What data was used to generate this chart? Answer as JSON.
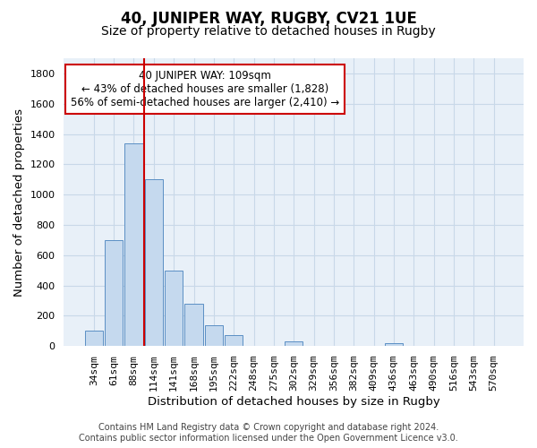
{
  "title": "40, JUNIPER WAY, RUGBY, CV21 1UE",
  "subtitle": "Size of property relative to detached houses in Rugby",
  "xlabel": "Distribution of detached houses by size in Rugby",
  "ylabel": "Number of detached properties",
  "categories": [
    "34sqm",
    "61sqm",
    "88sqm",
    "114sqm",
    "141sqm",
    "168sqm",
    "195sqm",
    "222sqm",
    "248sqm",
    "275sqm",
    "302sqm",
    "329sqm",
    "356sqm",
    "382sqm",
    "409sqm",
    "436sqm",
    "463sqm",
    "490sqm",
    "516sqm",
    "543sqm",
    "570sqm"
  ],
  "values": [
    100,
    700,
    1340,
    1100,
    500,
    280,
    140,
    75,
    0,
    0,
    30,
    0,
    0,
    0,
    0,
    20,
    0,
    0,
    0,
    0,
    0
  ],
  "bar_color": "#c5d9ee",
  "bar_edge_color": "#5b8fc4",
  "vline_color": "#cc0000",
  "annotation_lines": [
    "40 JUNIPER WAY: 109sqm",
    "← 43% of detached houses are smaller (1,828)",
    "56% of semi-detached houses are larger (2,410) →"
  ],
  "ylim": [
    0,
    1900
  ],
  "yticks": [
    0,
    200,
    400,
    600,
    800,
    1000,
    1200,
    1400,
    1600,
    1800
  ],
  "footer_line1": "Contains HM Land Registry data © Crown copyright and database right 2024.",
  "footer_line2": "Contains public sector information licensed under the Open Government Licence v3.0.",
  "background_color": "#ffffff",
  "grid_color": "#c8d8e8",
  "title_fontsize": 12,
  "subtitle_fontsize": 10,
  "axis_label_fontsize": 9.5,
  "tick_fontsize": 8,
  "annotation_fontsize": 8.5,
  "footer_fontsize": 7
}
